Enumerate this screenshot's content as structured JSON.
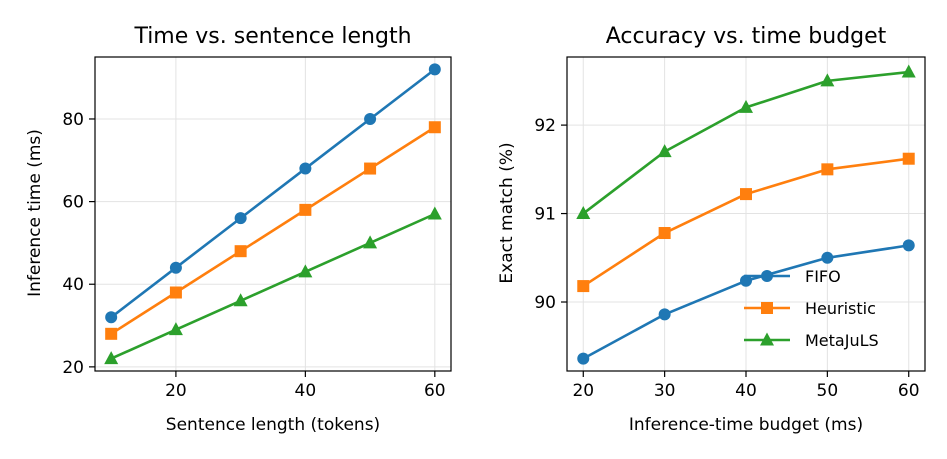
{
  "chart_data": [
    {
      "type": "line",
      "title": "Time vs. sentence length",
      "xlabel": "Sentence length (tokens)",
      "ylabel": "Inference time (ms)",
      "x": [
        10,
        20,
        30,
        40,
        50,
        60
      ],
      "xlim": [
        7.5,
        62.5
      ],
      "ylim": [
        19,
        95
      ],
      "xticks": [
        20,
        40,
        60
      ],
      "yticks": [
        20,
        40,
        60,
        80
      ],
      "grid": true,
      "series": [
        {
          "name": "FIFO",
          "color": "#1f77b4",
          "marker": "circle",
          "values": [
            32,
            44,
            56,
            68,
            80,
            92
          ]
        },
        {
          "name": "Heuristic",
          "color": "#ff7f0e",
          "marker": "square",
          "values": [
            28,
            38,
            48,
            58,
            68,
            78
          ]
        },
        {
          "name": "MetaJuLS",
          "color": "#2ca02c",
          "marker": "triangle",
          "values": [
            22,
            29,
            36,
            43,
            50,
            57
          ]
        }
      ]
    },
    {
      "type": "line",
      "title": "Accuracy vs. time budget",
      "xlabel": "Inference-time budget (ms)",
      "ylabel": "Exact match (%)",
      "x": [
        20,
        30,
        40,
        50,
        60
      ],
      "xlim": [
        18,
        62
      ],
      "ylim": [
        89.22,
        92.77
      ],
      "xticks": [
        20,
        30,
        40,
        50,
        60
      ],
      "yticks": [
        90,
        91,
        92
      ],
      "grid": true,
      "legend": "lower-right",
      "series": [
        {
          "name": "FIFO",
          "color": "#1f77b4",
          "marker": "circle",
          "values": [
            89.36,
            89.86,
            90.24,
            90.5,
            90.64
          ]
        },
        {
          "name": "Heuristic",
          "color": "#ff7f0e",
          "marker": "square",
          "values": [
            90.18,
            90.78,
            91.22,
            91.5,
            91.62
          ]
        },
        {
          "name": "MetaJuLS",
          "color": "#2ca02c",
          "marker": "triangle",
          "values": [
            91.0,
            91.7,
            92.2,
            92.5,
            92.6
          ]
        }
      ]
    }
  ]
}
